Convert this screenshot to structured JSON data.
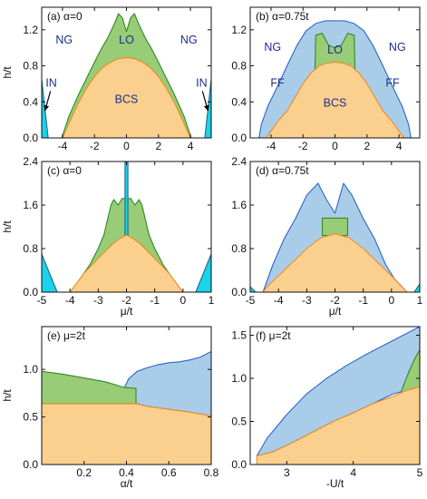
{
  "colors": {
    "bcs_fill": "#fbd08e",
    "bcs_line": "#f08a24",
    "lo_fill": "#98cc76",
    "lo_line": "#2f8a25",
    "ff_fill": "#a9cde9",
    "ff_line": "#2a66c8",
    "in_fill": "#19d4ea",
    "in_line": "#1a6b8a",
    "text": "#1d2d8f",
    "axis": "#111111"
  },
  "chart_data": [
    {
      "id": "a",
      "type": "area",
      "title": "(a) α=0",
      "xlabel": "",
      "ylabel": "h/t",
      "xlim": [
        -5.3,
        5.3
      ],
      "ylim": [
        0,
        1.45
      ],
      "xticks": [
        -4,
        -2,
        0,
        2,
        4
      ],
      "xtick_labels": [
        "-4",
        "-2",
        "0",
        "2",
        "4"
      ],
      "yticks": [
        0,
        0.4,
        0.8,
        1.2
      ],
      "ytick_labels": [
        "0.0",
        "0.4",
        "0.8",
        "1.2"
      ],
      "series": [
        {
          "name": "LO",
          "kind": "LO",
          "x": [
            -4.05,
            -3.6,
            -3.0,
            -2.5,
            -2.0,
            -1.6,
            -1.2,
            -0.8,
            -0.5,
            -0.25,
            0,
            0.25,
            0.5,
            0.8,
            1.2,
            1.6,
            2.0,
            2.5,
            3.0,
            3.6,
            4.05,
            4.05,
            -4.05
          ],
          "y": [
            0,
            0.24,
            0.48,
            0.66,
            0.84,
            0.98,
            1.1,
            1.25,
            1.38,
            1.33,
            1.18,
            1.33,
            1.38,
            1.25,
            1.1,
            0.98,
            0.84,
            0.66,
            0.48,
            0.24,
            0,
            0,
            0
          ]
        },
        {
          "name": "BCS",
          "kind": "BCS",
          "x": [
            -4,
            -3.5,
            -3,
            -2.5,
            -2,
            -1.5,
            -1,
            -0.5,
            0,
            0.5,
            1,
            1.5,
            2,
            2.5,
            3,
            3.5,
            4,
            4,
            -4
          ],
          "y": [
            0,
            0.2,
            0.39,
            0.55,
            0.68,
            0.78,
            0.84,
            0.88,
            0.89,
            0.88,
            0.84,
            0.78,
            0.68,
            0.55,
            0.39,
            0.2,
            0,
            0,
            0
          ]
        },
        {
          "name": "IN",
          "kind": "IN",
          "x": [
            -5.3,
            -4.9,
            -5.3
          ],
          "y": [
            0.65,
            0,
            0
          ]
        },
        {
          "name": "IN",
          "kind": "IN",
          "x": [
            5.3,
            4.9,
            5.3
          ],
          "y": [
            0.65,
            0,
            0
          ]
        }
      ],
      "annotations": [
        {
          "text": "NG",
          "x": -3.9,
          "y": 1.08,
          "color": "text"
        },
        {
          "text": "LO",
          "x": 0,
          "y": 1.08,
          "color": "text"
        },
        {
          "text": "NG",
          "x": 3.9,
          "y": 1.08,
          "color": "text"
        },
        {
          "text": "BCS",
          "x": 0,
          "y": 0.42,
          "color": "text"
        },
        {
          "text": "IN",
          "x": -4.7,
          "y": 0.6,
          "color": "text"
        },
        {
          "text": "IN",
          "x": 4.7,
          "y": 0.6,
          "color": "text"
        }
      ],
      "arrows": [
        {
          "x1": -4.75,
          "y1": 0.52,
          "x2": -5.1,
          "y2": 0.3
        },
        {
          "x1": 4.75,
          "y1": 0.52,
          "x2": 5.1,
          "y2": 0.3
        }
      ]
    },
    {
      "id": "b",
      "type": "area",
      "title": "(b) α=0.75t",
      "xlabel": "",
      "ylabel": "",
      "xlim": [
        -5.3,
        5.3
      ],
      "ylim": [
        0,
        1.45
      ],
      "xticks": [
        -4,
        -2,
        0,
        2,
        4
      ],
      "xtick_labels": [
        "-4",
        "-2",
        "0",
        "2",
        "4"
      ],
      "yticks": [
        0,
        0.4,
        0.8,
        1.2
      ],
      "ytick_labels": [
        "0.0",
        "0.4",
        "0.8",
        "1.2"
      ],
      "series": [
        {
          "name": "FF",
          "kind": "FF",
          "x": [
            -4.75,
            -4.6,
            -4.2,
            -3.6,
            -3.0,
            -2.4,
            -1.8,
            -1.2,
            -0.6,
            0,
            0.6,
            1.2,
            1.8,
            2.4,
            3.0,
            3.6,
            4.2,
            4.6,
            4.75,
            4.75,
            -4.75
          ],
          "y": [
            0,
            0.15,
            0.35,
            0.57,
            0.8,
            1.02,
            1.19,
            1.27,
            1.3,
            1.3,
            1.3,
            1.27,
            1.19,
            1.02,
            0.8,
            0.57,
            0.35,
            0.15,
            0,
            0,
            0
          ]
        },
        {
          "name": "LO",
          "kind": "LO",
          "x": [
            -1.25,
            -1.2,
            -0.8,
            -0.4,
            0,
            0.4,
            0.8,
            1.2,
            1.25,
            1.25,
            -1.25
          ],
          "y": [
            0.75,
            1.14,
            1.16,
            1.03,
            1.0,
            1.03,
            1.16,
            1.14,
            0.75,
            0.75,
            0.75
          ]
        },
        {
          "name": "BCS",
          "kind": "BCS",
          "x": [
            -4.3,
            -3.5,
            -3,
            -2.5,
            -2,
            -1.5,
            -1,
            -0.5,
            0,
            0.5,
            1,
            1.5,
            2,
            2.5,
            3,
            3.5,
            4.3,
            4.3,
            -4.3
          ],
          "y": [
            0,
            0.2,
            0.3,
            0.45,
            0.6,
            0.72,
            0.8,
            0.83,
            0.84,
            0.83,
            0.8,
            0.72,
            0.6,
            0.45,
            0.3,
            0.2,
            0,
            0,
            0
          ]
        }
      ],
      "annotations": [
        {
          "text": "NG",
          "x": -3.9,
          "y": 1.0,
          "color": "text"
        },
        {
          "text": "LO",
          "x": 0,
          "y": 0.97,
          "color": "text"
        },
        {
          "text": "NG",
          "x": 3.9,
          "y": 1.0,
          "color": "text"
        },
        {
          "text": "FF",
          "x": -3.6,
          "y": 0.6,
          "color": "text"
        },
        {
          "text": "FF",
          "x": 3.6,
          "y": 0.6,
          "color": "text"
        },
        {
          "text": "BCS",
          "x": 0,
          "y": 0.38,
          "color": "text"
        }
      ],
      "arrows": []
    },
    {
      "id": "c",
      "type": "area",
      "title": "(c) α=0",
      "xlabel": "μ/t",
      "ylabel": "h/t",
      "xlim": [
        -5,
        1
      ],
      "ylim": [
        0,
        2.4
      ],
      "xticks": [
        -5,
        -4,
        -3,
        -2,
        -1,
        0,
        1
      ],
      "xtick_labels": [
        "-5",
        "-4",
        "-3",
        "-2",
        "-1",
        "0",
        "1"
      ],
      "yticks": [
        0,
        0.8,
        1.6,
        2.4
      ],
      "ytick_labels": [
        "0.0",
        "0.8",
        "1.6",
        "2.4"
      ],
      "series": [
        {
          "name": "LO",
          "kind": "LO",
          "x": [
            -4.0,
            -3.7,
            -3.3,
            -3.0,
            -2.8,
            -2.55,
            -2.45,
            -2.3,
            -2.15,
            -2.0,
            -1.85,
            -1.7,
            -1.55,
            -1.45,
            -1.2,
            -1.0,
            -0.7,
            -0.3,
            0,
            0,
            -4.0
          ],
          "y": [
            0,
            0.2,
            0.5,
            0.8,
            1.05,
            1.6,
            1.7,
            1.6,
            1.72,
            1.72,
            1.72,
            1.6,
            1.7,
            1.6,
            1.05,
            0.8,
            0.5,
            0.2,
            0,
            0,
            0
          ]
        },
        {
          "name": "IN",
          "kind": "IN",
          "x": [
            -2.05,
            -1.95,
            -1.95,
            -2.05
          ],
          "y": [
            1.0,
            1.0,
            2.4,
            2.4
          ]
        },
        {
          "name": "BCS",
          "kind": "BCS",
          "x": [
            -4.0,
            -3.5,
            -3.0,
            -2.5,
            -2.25,
            -2.0,
            -1.75,
            -1.5,
            -1.0,
            -0.5,
            0,
            0,
            -4.0
          ],
          "y": [
            0,
            0.35,
            0.62,
            0.88,
            0.98,
            1.05,
            0.98,
            0.88,
            0.62,
            0.35,
            0,
            0,
            0
          ]
        },
        {
          "name": "IN",
          "kind": "IN",
          "x": [
            -5,
            -5,
            -4.45
          ],
          "y": [
            0.7,
            0,
            0
          ]
        },
        {
          "name": "IN",
          "kind": "IN",
          "x": [
            0.45,
            1,
            1
          ],
          "y": [
            0,
            0,
            0.7
          ]
        }
      ],
      "annotations": [],
      "arrows": []
    },
    {
      "id": "d",
      "type": "area",
      "title": "(d) α=0.75t",
      "xlabel": "μ/t",
      "ylabel": "",
      "xlim": [
        -5,
        1
      ],
      "ylim": [
        0,
        2.4
      ],
      "xticks": [
        -5,
        -4,
        -3,
        -2,
        -1,
        0,
        1
      ],
      "xtick_labels": [
        "-5",
        "-4",
        "-3",
        "-2",
        "-1",
        "0",
        "1"
      ],
      "yticks": [
        0,
        0.8,
        1.6,
        2.4
      ],
      "ytick_labels": [
        "0.0",
        "0.8",
        "1.6",
        "2.4"
      ],
      "series": [
        {
          "name": "FF",
          "kind": "FF",
          "x": [
            -4.55,
            -4.2,
            -3.8,
            -3.4,
            -3.0,
            -2.6,
            -2.3,
            -2.0,
            -1.7,
            -1.4,
            -1.0,
            -0.6,
            -0.2,
            0.1,
            0.55,
            0.55,
            -4.55
          ],
          "y": [
            0,
            0.5,
            0.98,
            1.35,
            1.78,
            2.0,
            1.7,
            1.45,
            2.0,
            1.78,
            1.35,
            0.98,
            0.5,
            0.25,
            0,
            0,
            0
          ]
        },
        {
          "name": "LO",
          "kind": "LO",
          "x": [
            -2.45,
            -2.45,
            -1.55,
            -1.55,
            -2.45
          ],
          "y": [
            1.04,
            1.36,
            1.36,
            1.04,
            1.04
          ]
        },
        {
          "name": "BCS",
          "kind": "BCS",
          "x": [
            -4.55,
            -4.4,
            -4.0,
            -3.5,
            -3.0,
            -2.5,
            -2.0,
            -1.5,
            -1.0,
            -0.5,
            0,
            0.55,
            0.55,
            -4.55
          ],
          "y": [
            0,
            0.1,
            0.3,
            0.55,
            0.8,
            1.0,
            1.07,
            1.0,
            0.8,
            0.55,
            0.3,
            0,
            0,
            0
          ]
        },
        {
          "name": "IN",
          "kind": "IN",
          "x": [
            -5,
            -5,
            -4.8
          ],
          "y": [
            0.1,
            0,
            0
          ]
        },
        {
          "name": "IN",
          "kind": "IN",
          "x": [
            0.8,
            1,
            1
          ],
          "y": [
            0,
            0,
            0.15
          ]
        }
      ],
      "annotations": [],
      "arrows": []
    },
    {
      "id": "e",
      "type": "area",
      "title": "(e) μ=2t",
      "xlabel": "α/t",
      "ylabel": "h/t",
      "xlim": [
        0,
        0.8
      ],
      "ylim": [
        0,
        1.45
      ],
      "xticks": [
        0.2,
        0.4,
        0.6,
        0.8
      ],
      "xtick_labels": [
        "0.2",
        "0.4",
        "0.6",
        "0.8"
      ],
      "yticks": [
        0,
        0.5,
        1.0
      ],
      "ytick_labels": [
        "0.0",
        "0.5",
        "1.0"
      ],
      "series": [
        {
          "name": "FF",
          "kind": "FF",
          "x": [
            0.39,
            0.41,
            0.45,
            0.5,
            0.55,
            0.6,
            0.65,
            0.7,
            0.75,
            0.8,
            0.8,
            0.7,
            0.6,
            0.5,
            0.45,
            0.39
          ],
          "y": [
            0.81,
            0.9,
            0.98,
            1.02,
            1.05,
            1.07,
            1.08,
            1.1,
            1.13,
            1.19,
            0.51,
            0.55,
            0.58,
            0.61,
            0.64,
            0.64
          ]
        },
        {
          "name": "LO",
          "kind": "LO",
          "x": [
            0,
            0.1,
            0.2,
            0.3,
            0.39,
            0.445,
            0.445,
            0
          ],
          "y": [
            0.98,
            0.95,
            0.91,
            0.87,
            0.81,
            0.8,
            0.64,
            0.64
          ]
        },
        {
          "name": "BCS",
          "kind": "BCS",
          "x": [
            0,
            0.445,
            0.5,
            0.6,
            0.7,
            0.8,
            0.8,
            0
          ],
          "y": [
            0.64,
            0.64,
            0.61,
            0.58,
            0.55,
            0.51,
            0,
            0
          ]
        }
      ],
      "annotations": [],
      "arrows": []
    },
    {
      "id": "f",
      "type": "area",
      "title": "(f) μ=2t",
      "xlabel": "-U/t",
      "ylabel": "",
      "xlim": [
        2.45,
        5
      ],
      "ylim": [
        0,
        1.6
      ],
      "xticks": [
        3,
        4,
        5
      ],
      "xtick_labels": [
        "3",
        "4",
        "5"
      ],
      "yticks": [
        0,
        0.5,
        1.0,
        1.5
      ],
      "ytick_labels": [
        "0.0",
        "0.5",
        "1.0",
        "1.5"
      ],
      "series": [
        {
          "name": "FF",
          "kind": "FF",
          "x": [
            2.55,
            2.7,
            3.0,
            3.3,
            3.6,
            3.9,
            4.2,
            4.5,
            4.8,
            5.0,
            5.0,
            4.6,
            4.3,
            4.0,
            3.7,
            3.4,
            3.1,
            2.8,
            2.55
          ],
          "y": [
            0.1,
            0.3,
            0.58,
            0.82,
            1.0,
            1.15,
            1.28,
            1.4,
            1.52,
            1.6,
            0.9,
            0.82,
            0.71,
            0.6,
            0.5,
            0.38,
            0.26,
            0.15,
            0.1
          ]
        },
        {
          "name": "LO",
          "kind": "LO",
          "x": [
            4.7,
            4.78,
            4.85,
            4.92,
            5.0,
            5.0,
            4.7
          ],
          "y": [
            0.8,
            0.97,
            1.1,
            1.22,
            1.33,
            0.9,
            0.8
          ]
        },
        {
          "name": "BCS",
          "kind": "BCS",
          "x": [
            2.55,
            2.8,
            3.1,
            3.4,
            3.7,
            4.0,
            4.3,
            4.6,
            4.8,
            5.0,
            5.0,
            2.55
          ],
          "y": [
            0.1,
            0.15,
            0.26,
            0.38,
            0.5,
            0.6,
            0.71,
            0.79,
            0.86,
            0.9,
            0,
            0
          ]
        }
      ],
      "annotations": [],
      "arrows": []
    }
  ]
}
